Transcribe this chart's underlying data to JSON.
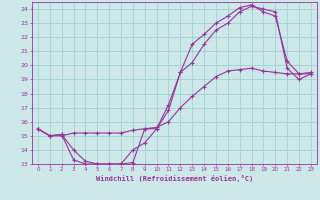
{
  "xlabel": "Windchill (Refroidissement éolien,°C)",
  "background_color": "#cce8e8",
  "grid_color": "#99cccc",
  "line_color": "#993399",
  "xlim": [
    -0.5,
    23.5
  ],
  "ylim": [
    13,
    24.5
  ],
  "xticks": [
    0,
    1,
    2,
    3,
    4,
    5,
    6,
    7,
    8,
    9,
    10,
    11,
    12,
    13,
    14,
    15,
    16,
    17,
    18,
    19,
    20,
    21,
    22,
    23
  ],
  "yticks": [
    13,
    14,
    15,
    16,
    17,
    18,
    19,
    20,
    21,
    22,
    23,
    24
  ],
  "line1_x": [
    0,
    1,
    2,
    3,
    4,
    5,
    6,
    7,
    8,
    9,
    10,
    11,
    12,
    13,
    14,
    15,
    16,
    17,
    18,
    19,
    20,
    21,
    22,
    23
  ],
  "line1_y": [
    15.5,
    15.0,
    15.1,
    14.0,
    13.2,
    13.0,
    13.0,
    13.0,
    13.1,
    15.5,
    15.5,
    16.8,
    19.5,
    21.5,
    22.2,
    23.0,
    23.5,
    24.1,
    24.3,
    23.8,
    23.5,
    20.3,
    19.4,
    19.4
  ],
  "line2_x": [
    0,
    1,
    2,
    3,
    4,
    5,
    6,
    7,
    8,
    9,
    10,
    11,
    12,
    13,
    14,
    15,
    16,
    17,
    18,
    19,
    20,
    21,
    22,
    23
  ],
  "line2_y": [
    15.5,
    15.0,
    15.1,
    13.3,
    13.0,
    13.0,
    13.0,
    13.0,
    14.0,
    14.5,
    15.5,
    17.2,
    19.5,
    20.2,
    21.5,
    22.5,
    23.0,
    23.8,
    24.2,
    24.0,
    23.8,
    19.8,
    19.0,
    19.4
  ],
  "line3_x": [
    0,
    1,
    2,
    3,
    4,
    5,
    6,
    7,
    8,
    9,
    10,
    11,
    12,
    13,
    14,
    15,
    16,
    17,
    18,
    19,
    20,
    21,
    22,
    23
  ],
  "line3_y": [
    15.5,
    15.0,
    15.0,
    15.2,
    15.2,
    15.2,
    15.2,
    15.2,
    15.4,
    15.5,
    15.6,
    16.0,
    17.0,
    17.8,
    18.5,
    19.2,
    19.6,
    19.7,
    19.8,
    19.6,
    19.5,
    19.4,
    19.4,
    19.5
  ]
}
